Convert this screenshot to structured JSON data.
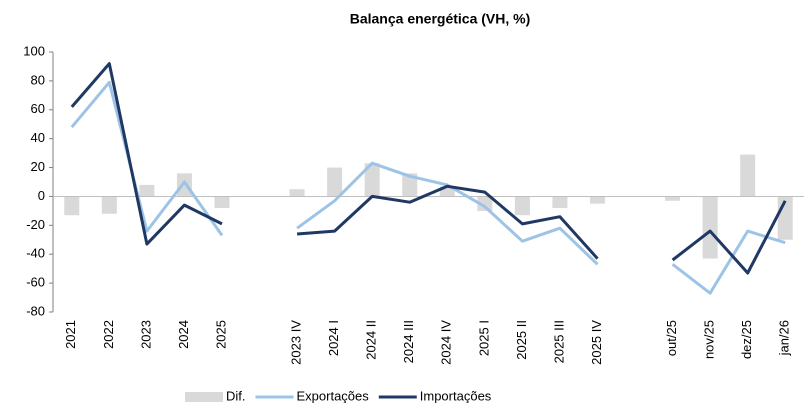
{
  "chart_data": {
    "type": "bar_line",
    "title": "Balança energética (VH, %)",
    "categories": [
      "2021",
      "2022",
      "2023",
      "2024",
      "2025",
      null,
      "2023 IV",
      "2024 I",
      "2024 II",
      "2024 III",
      "2024 IV",
      "2025 I",
      "2025 II",
      "2025 III",
      "2025 IV",
      null,
      "out/25",
      "nov/25",
      "dez/25",
      "jan/26"
    ],
    "series": [
      {
        "name": "Dif.",
        "kind": "bar",
        "color": "#d9d9d9",
        "values": [
          -13,
          -12,
          8,
          16,
          -8,
          null,
          5,
          20,
          23,
          16,
          7,
          -10,
          -13,
          -8,
          -5,
          null,
          -3,
          -43,
          29,
          -30
        ]
      },
      {
        "name": "Exportações",
        "kind": "line",
        "color": "#9dc3e6",
        "values": [
          48,
          79,
          -24,
          10,
          -27,
          null,
          -22,
          -3,
          23,
          14,
          8,
          -7,
          -31,
          -22,
          -47,
          null,
          -47,
          -67,
          -24,
          -32
        ]
      },
      {
        "name": "Importações",
        "kind": "line",
        "color": "#1f3864",
        "values": [
          62,
          92,
          -33,
          -6,
          -19,
          null,
          -26,
          -24,
          0,
          -4,
          7,
          3,
          -19,
          -14,
          -43,
          null,
          -44,
          -24,
          -53,
          -3
        ]
      }
    ],
    "ylim": [
      -80,
      100
    ],
    "yticks": [
      -80,
      -60,
      -40,
      -20,
      0,
      20,
      40,
      60,
      80,
      100
    ]
  }
}
